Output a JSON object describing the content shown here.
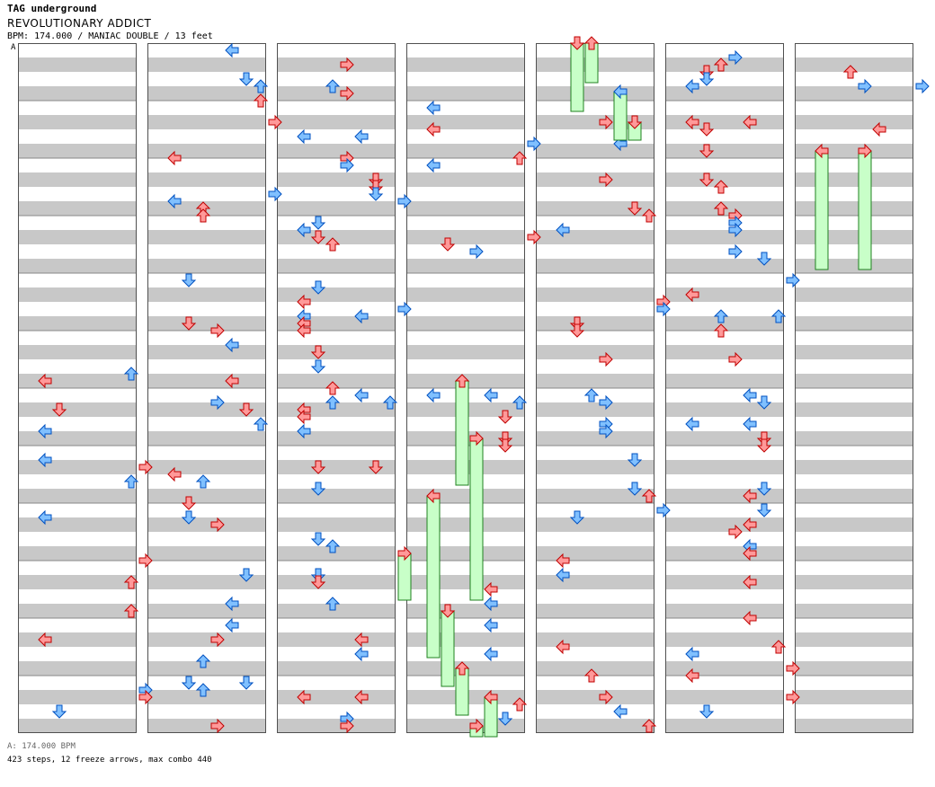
{
  "header": {
    "artist": "TAG underground",
    "title": "REVOLUTIONARY ADDICT",
    "meta": "BPM: 174.000 / MANIAC DOUBLE / 13 feet"
  },
  "marker": "A",
  "footer": {
    "bpm": "A: 174.000 BPM",
    "stats": "423 steps, 12 freeze arrows, max combo 440"
  },
  "colors": {
    "stripe": "#c8c8c8",
    "border": "#505050",
    "red": "#ff9999",
    "red_edge": "#c00000",
    "blue": "#80c0ff",
    "blue_edge": "#0050c0",
    "pink": "#ffb0ff",
    "pink_edge": "#b000b0",
    "freeze": "#c8ffc8",
    "freeze_edge": "#208020"
  }
}
